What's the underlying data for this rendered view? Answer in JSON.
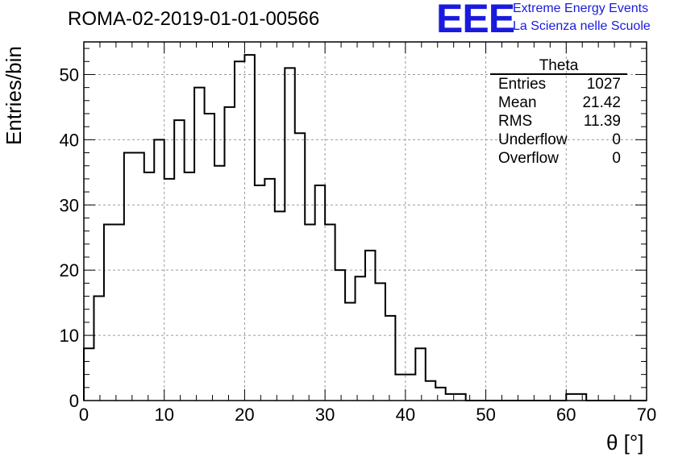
{
  "chart_data": {
    "type": "bar",
    "title": "ROMA-02-2019-01-01-00566",
    "xlabel": "θ [°]",
    "ylabel": "Entries/bin",
    "xlim": [
      0,
      70
    ],
    "ylim": [
      0,
      55
    ],
    "xticks": [
      0,
      10,
      20,
      30,
      40,
      50,
      60,
      70
    ],
    "yticks": [
      0,
      10,
      20,
      30,
      40,
      50
    ],
    "grid": true,
    "histogram": {
      "name": "Theta",
      "bin_edges_start": 0,
      "bin_width": 1.25,
      "values": [
        8,
        16,
        27,
        27,
        38,
        38,
        35,
        40,
        34,
        43,
        35,
        48,
        44,
        36,
        45,
        52,
        53,
        33,
        34,
        29,
        51,
        41,
        27,
        33,
        27,
        20,
        15,
        19,
        23,
        18,
        13,
        4,
        4,
        8,
        3,
        2,
        1,
        1,
        0,
        0,
        0,
        0,
        0,
        0,
        0,
        0,
        0,
        0,
        1,
        1,
        0,
        0,
        0,
        0,
        0,
        0
      ]
    },
    "stats": {
      "title": "Theta",
      "rows": [
        {
          "label": "Entries",
          "value": "1027"
        },
        {
          "label": "Mean",
          "value": "21.42"
        },
        {
          "label": "RMS",
          "value": "11.39"
        },
        {
          "label": "Underflow",
          "value": "0"
        },
        {
          "label": "Overflow",
          "value": "0"
        }
      ]
    }
  },
  "logo": {
    "text": "EEE",
    "line1": "Extreme Energy Events",
    "line2": "La Scienza nelle Scuole",
    "color": "#1a1adf"
  }
}
